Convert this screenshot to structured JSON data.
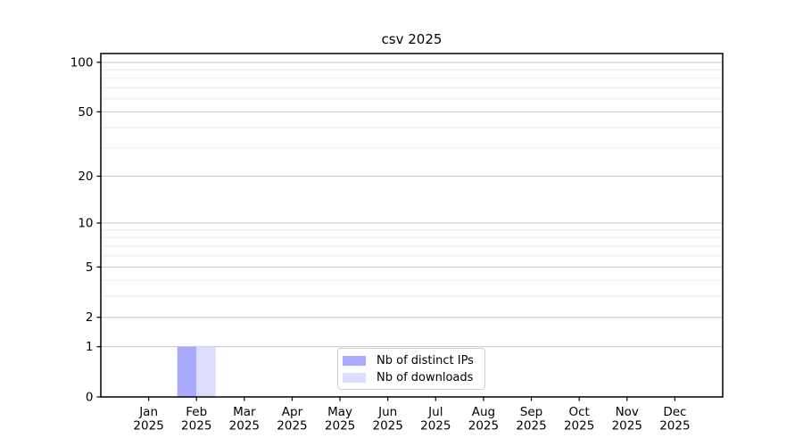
{
  "chart_data": {
    "type": "bar",
    "title": "csv 2025",
    "x_categories": [
      "Jan",
      "Feb",
      "Mar",
      "Apr",
      "May",
      "Jun",
      "Jul",
      "Aug",
      "Sep",
      "Oct",
      "Nov",
      "Dec"
    ],
    "x_sublabel": "2025",
    "series": [
      {
        "name": "Nb of distinct IPs",
        "color": "#aaaaff",
        "values": [
          0,
          1,
          0,
          0,
          0,
          0,
          0,
          0,
          0,
          0,
          0,
          0
        ]
      },
      {
        "name": "Nb of downloads",
        "color": "#ddddff",
        "values": [
          0,
          1,
          0,
          0,
          0,
          0,
          0,
          0,
          0,
          0,
          0,
          0
        ]
      }
    ],
    "yscale": "log1p",
    "ylim": [
      0,
      113
    ],
    "yticks_major": [
      0,
      1,
      2,
      5,
      10,
      20,
      50,
      100
    ],
    "yticks_minor": [
      3,
      4,
      6,
      7,
      8,
      9,
      30,
      40,
      60,
      70,
      80,
      90
    ],
    "grid": "horizontal-only",
    "legend_position": "lower center",
    "colors": {
      "background": "#ffffff",
      "axis": "#000000",
      "text": "#000000",
      "grid_major": "#c6c6c6",
      "grid_minor": "#ebebeb",
      "legend_border": "#cccccc"
    }
  }
}
